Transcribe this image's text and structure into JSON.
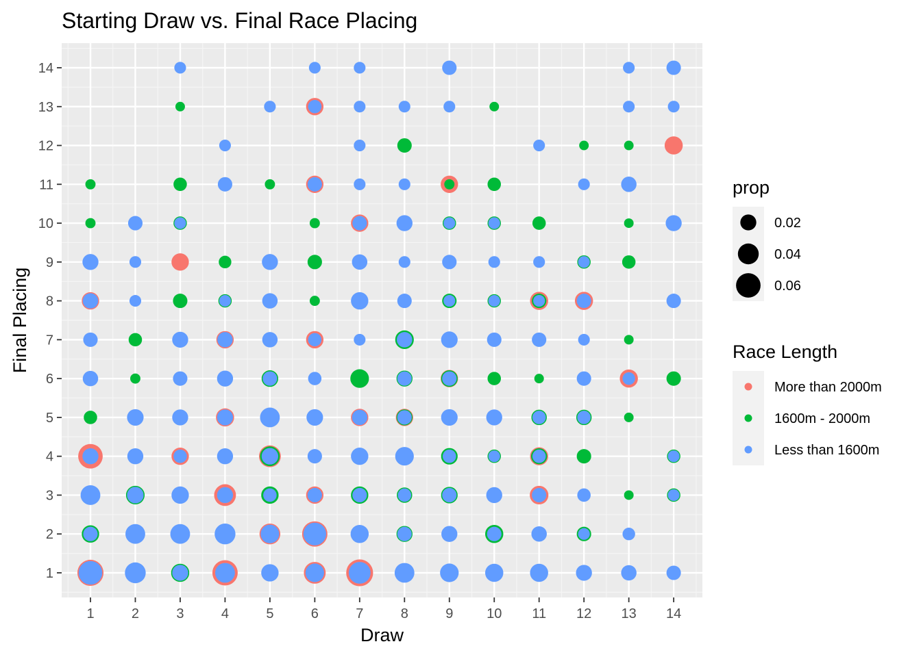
{
  "chart_data": {
    "type": "scatter",
    "title": "Starting Draw vs. Final Race Placing",
    "xlabel": "Draw",
    "ylabel": "Final Placing",
    "xlim": [
      0.4,
      14.6
    ],
    "ylim": [
      0.4,
      14.6
    ],
    "x_ticks": [
      "1",
      "2",
      "3",
      "4",
      "5",
      "6",
      "7",
      "8",
      "9",
      "10",
      "11",
      "12",
      "13",
      "14"
    ],
    "y_ticks": [
      "1",
      "2",
      "3",
      "4",
      "5",
      "6",
      "7",
      "8",
      "9",
      "10",
      "11",
      "12",
      "13",
      "14"
    ],
    "grid": true,
    "size_legend": {
      "title": "prop",
      "entries": [
        {
          "label": "0.02",
          "value": 0.02
        },
        {
          "label": "0.04",
          "value": 0.04
        },
        {
          "label": "0.06",
          "value": 0.06
        }
      ]
    },
    "color_legend": {
      "title": "Race Length",
      "position": "right",
      "entries": [
        {
          "label": "More than 2000m",
          "color": "#F8766D"
        },
        {
          "label": "1600m - 2000m",
          "color": "#00BA38"
        },
        {
          "label": "Less than 1600m",
          "color": "#619CFF"
        }
      ]
    },
    "series": [
      {
        "name": "More than 2000m",
        "color": "#F8766D",
        "points": [
          [
            1,
            1,
            0.07
          ],
          [
            1,
            4,
            0.06
          ],
          [
            1,
            8,
            0.025
          ],
          [
            3,
            4,
            0.025
          ],
          [
            3,
            9,
            0.025
          ],
          [
            4,
            1,
            0.065
          ],
          [
            4,
            3,
            0.045
          ],
          [
            4,
            5,
            0.028
          ],
          [
            4,
            7,
            0.025
          ],
          [
            5,
            2,
            0.04
          ],
          [
            5,
            4,
            0.045
          ],
          [
            6,
            1,
            0.045
          ],
          [
            6,
            2,
            0.065
          ],
          [
            6,
            3,
            0.025
          ],
          [
            6,
            7,
            0.025
          ],
          [
            6,
            11,
            0.025
          ],
          [
            6,
            13,
            0.025
          ],
          [
            7,
            1,
            0.075
          ],
          [
            7,
            5,
            0.025
          ],
          [
            7,
            10,
            0.025
          ],
          [
            8,
            5,
            0.025
          ],
          [
            8,
            7,
            0.025
          ],
          [
            9,
            6,
            0.025
          ],
          [
            9,
            11,
            0.025
          ],
          [
            11,
            3,
            0.03
          ],
          [
            11,
            4,
            0.028
          ],
          [
            11,
            8,
            0.028
          ],
          [
            12,
            8,
            0.028
          ],
          [
            13,
            6,
            0.028
          ],
          [
            14,
            12,
            0.028
          ]
        ]
      },
      {
        "name": "1600m - 2000m",
        "color": "#00BA38",
        "points": [
          [
            1,
            2,
            0.025
          ],
          [
            1,
            4,
            0.018
          ],
          [
            1,
            5,
            0.012
          ],
          [
            1,
            10,
            0.005
          ],
          [
            1,
            11,
            0.005
          ],
          [
            2,
            3,
            0.03
          ],
          [
            2,
            6,
            0.005
          ],
          [
            2,
            7,
            0.012
          ],
          [
            3,
            1,
            0.028
          ],
          [
            3,
            8,
            0.015
          ],
          [
            3,
            10,
            0.012
          ],
          [
            3,
            11,
            0.012
          ],
          [
            3,
            13,
            0.004
          ],
          [
            4,
            8,
            0.012
          ],
          [
            4,
            9,
            0.01
          ],
          [
            5,
            3,
            0.025
          ],
          [
            5,
            4,
            0.035
          ],
          [
            5,
            6,
            0.022
          ],
          [
            5,
            11,
            0.005
          ],
          [
            6,
            8,
            0.005
          ],
          [
            6,
            9,
            0.015
          ],
          [
            6,
            10,
            0.005
          ],
          [
            7,
            3,
            0.025
          ],
          [
            7,
            6,
            0.03
          ],
          [
            8,
            2,
            0.02
          ],
          [
            8,
            3,
            0.018
          ],
          [
            8,
            5,
            0.02
          ],
          [
            8,
            6,
            0.02
          ],
          [
            8,
            7,
            0.03
          ],
          [
            8,
            12,
            0.015
          ],
          [
            9,
            3,
            0.022
          ],
          [
            9,
            4,
            0.022
          ],
          [
            9,
            6,
            0.022
          ],
          [
            9,
            8,
            0.015
          ],
          [
            9,
            10,
            0.012
          ],
          [
            9,
            11,
            0.005
          ],
          [
            10,
            2,
            0.028
          ],
          [
            10,
            4,
            0.012
          ],
          [
            10,
            6,
            0.012
          ],
          [
            10,
            8,
            0.012
          ],
          [
            10,
            10,
            0.012
          ],
          [
            10,
            11,
            0.012
          ],
          [
            10,
            13,
            0.004
          ],
          [
            11,
            4,
            0.02
          ],
          [
            11,
            5,
            0.018
          ],
          [
            11,
            6,
            0.004
          ],
          [
            11,
            8,
            0.015
          ],
          [
            11,
            10,
            0.012
          ],
          [
            12,
            2,
            0.015
          ],
          [
            12,
            4,
            0.015
          ],
          [
            12,
            5,
            0.018
          ],
          [
            12,
            9,
            0.012
          ],
          [
            12,
            12,
            0.004
          ],
          [
            13,
            3,
            0.004
          ],
          [
            13,
            5,
            0.004
          ],
          [
            13,
            7,
            0.004
          ],
          [
            13,
            9,
            0.012
          ],
          [
            13,
            10,
            0.004
          ],
          [
            13,
            12,
            0.004
          ],
          [
            14,
            3,
            0.012
          ],
          [
            14,
            4,
            0.012
          ],
          [
            14,
            6,
            0.015
          ]
        ]
      },
      {
        "name": "Less than 1600m",
        "color": "#619CFF",
        "points": [
          [
            1,
            1,
            0.055
          ],
          [
            1,
            2,
            0.015
          ],
          [
            1,
            3,
            0.035
          ],
          [
            1,
            4,
            0.02
          ],
          [
            1,
            6,
            0.018
          ],
          [
            1,
            7,
            0.015
          ],
          [
            1,
            8,
            0.018
          ],
          [
            1,
            9,
            0.02
          ],
          [
            2,
            1,
            0.04
          ],
          [
            2,
            2,
            0.035
          ],
          [
            2,
            3,
            0.022
          ],
          [
            2,
            4,
            0.02
          ],
          [
            2,
            5,
            0.022
          ],
          [
            2,
            8,
            0.008
          ],
          [
            2,
            9,
            0.008
          ],
          [
            2,
            10,
            0.015
          ],
          [
            3,
            1,
            0.02
          ],
          [
            3,
            2,
            0.035
          ],
          [
            3,
            3,
            0.025
          ],
          [
            3,
            4,
            0.012
          ],
          [
            3,
            5,
            0.02
          ],
          [
            3,
            6,
            0.015
          ],
          [
            3,
            7,
            0.02
          ],
          [
            3,
            10,
            0.008
          ],
          [
            3,
            14,
            0.008
          ],
          [
            4,
            1,
            0.035
          ],
          [
            4,
            2,
            0.04
          ],
          [
            4,
            3,
            0.02
          ],
          [
            4,
            4,
            0.02
          ],
          [
            4,
            5,
            0.02
          ],
          [
            4,
            6,
            0.02
          ],
          [
            4,
            7,
            0.018
          ],
          [
            4,
            8,
            0.008
          ],
          [
            4,
            11,
            0.015
          ],
          [
            4,
            12,
            0.008
          ],
          [
            5,
            1,
            0.025
          ],
          [
            5,
            2,
            0.03
          ],
          [
            5,
            3,
            0.012
          ],
          [
            5,
            4,
            0.022
          ],
          [
            5,
            5,
            0.035
          ],
          [
            5,
            6,
            0.015
          ],
          [
            5,
            7,
            0.018
          ],
          [
            5,
            8,
            0.018
          ],
          [
            5,
            9,
            0.02
          ],
          [
            5,
            13,
            0.008
          ],
          [
            6,
            1,
            0.03
          ],
          [
            6,
            2,
            0.05
          ],
          [
            6,
            3,
            0.015
          ],
          [
            6,
            4,
            0.015
          ],
          [
            6,
            5,
            0.022
          ],
          [
            6,
            6,
            0.012
          ],
          [
            6,
            7,
            0.012
          ],
          [
            6,
            11,
            0.015
          ],
          [
            6,
            13,
            0.012
          ],
          [
            6,
            14,
            0.008
          ],
          [
            7,
            1,
            0.045
          ],
          [
            7,
            2,
            0.028
          ],
          [
            7,
            3,
            0.015
          ],
          [
            7,
            4,
            0.025
          ],
          [
            7,
            5,
            0.018
          ],
          [
            7,
            8,
            0.025
          ],
          [
            7,
            9,
            0.018
          ],
          [
            7,
            10,
            0.015
          ],
          [
            7,
            11,
            0.008
          ],
          [
            7,
            12,
            0.008
          ],
          [
            7,
            13,
            0.008
          ],
          [
            7,
            14,
            0.008
          ],
          [
            7,
            7,
            0.008
          ],
          [
            8,
            1,
            0.035
          ],
          [
            8,
            2,
            0.015
          ],
          [
            8,
            3,
            0.012
          ],
          [
            8,
            4,
            0.03
          ],
          [
            8,
            5,
            0.015
          ],
          [
            8,
            6,
            0.015
          ],
          [
            8,
            7,
            0.018
          ],
          [
            8,
            8,
            0.015
          ],
          [
            8,
            9,
            0.008
          ],
          [
            8,
            10,
            0.02
          ],
          [
            8,
            11,
            0.008
          ],
          [
            8,
            13,
            0.008
          ],
          [
            9,
            1,
            0.03
          ],
          [
            9,
            2,
            0.02
          ],
          [
            9,
            3,
            0.015
          ],
          [
            9,
            4,
            0.012
          ],
          [
            9,
            5,
            0.022
          ],
          [
            9,
            6,
            0.015
          ],
          [
            9,
            7,
            0.022
          ],
          [
            9,
            8,
            0.008
          ],
          [
            9,
            9,
            0.015
          ],
          [
            9,
            10,
            0.008
          ],
          [
            9,
            13,
            0.008
          ],
          [
            9,
            14,
            0.015
          ],
          [
            10,
            1,
            0.028
          ],
          [
            10,
            2,
            0.015
          ],
          [
            10,
            3,
            0.02
          ],
          [
            10,
            4,
            0.008
          ],
          [
            10,
            5,
            0.02
          ],
          [
            10,
            7,
            0.015
          ],
          [
            10,
            8,
            0.008
          ],
          [
            10,
            9,
            0.008
          ],
          [
            10,
            10,
            0.008
          ],
          [
            11,
            1,
            0.028
          ],
          [
            11,
            2,
            0.018
          ],
          [
            11,
            3,
            0.015
          ],
          [
            11,
            4,
            0.012
          ],
          [
            11,
            5,
            0.012
          ],
          [
            11,
            7,
            0.015
          ],
          [
            11,
            8,
            0.008
          ],
          [
            11,
            9,
            0.008
          ],
          [
            11,
            12,
            0.008
          ],
          [
            12,
            1,
            0.02
          ],
          [
            12,
            2,
            0.008
          ],
          [
            12,
            3,
            0.012
          ],
          [
            12,
            5,
            0.012
          ],
          [
            12,
            6,
            0.015
          ],
          [
            12,
            7,
            0.008
          ],
          [
            12,
            8,
            0.015
          ],
          [
            12,
            9,
            0.008
          ],
          [
            12,
            11,
            0.008
          ],
          [
            13,
            1,
            0.018
          ],
          [
            13,
            2,
            0.01
          ],
          [
            13,
            6,
            0.01
          ],
          [
            13,
            11,
            0.018
          ],
          [
            13,
            13,
            0.008
          ],
          [
            13,
            14,
            0.008
          ],
          [
            14,
            1,
            0.015
          ],
          [
            14,
            3,
            0.008
          ],
          [
            14,
            4,
            0.008
          ],
          [
            14,
            8,
            0.015
          ],
          [
            14,
            10,
            0.02
          ],
          [
            14,
            13,
            0.008
          ],
          [
            14,
            14,
            0.015
          ]
        ]
      }
    ]
  }
}
